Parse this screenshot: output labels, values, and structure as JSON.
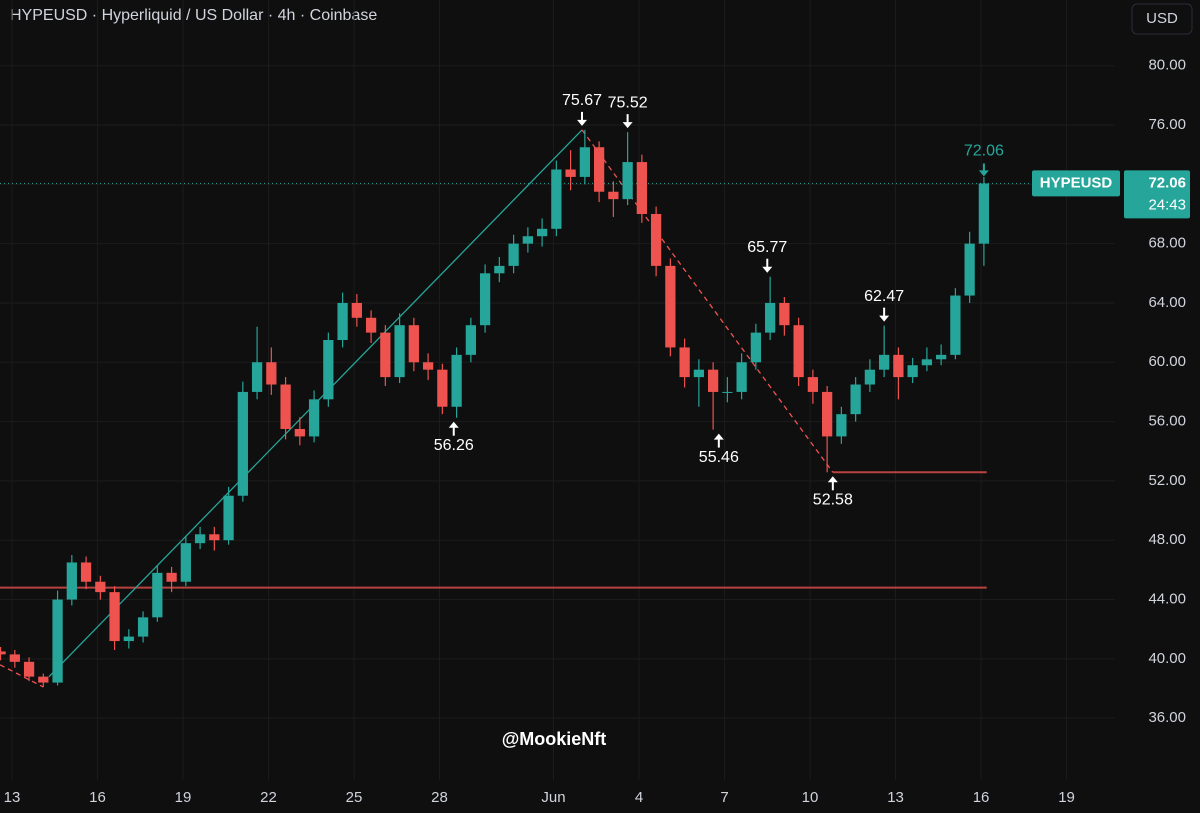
{
  "chart_data": {
    "type": "candlestick",
    "title": "HYPEUSD · Hyperliquid / US Dollar · 4h · Coinbase",
    "currency": "USD",
    "symbol": "HYPEUSD",
    "countdown": "24:43",
    "watermark": "@MookieNft",
    "up_color": "#26a69a",
    "down_color": "#ef5350",
    "grid": true,
    "x": [
      -0.4,
      0.1,
      0.6,
      1.1,
      1.6,
      2.1,
      2.6,
      3.1,
      3.6,
      4.1,
      4.6,
      5.1,
      5.6,
      6.1,
      6.6,
      7.1,
      7.6,
      8.1,
      8.6,
      9.1,
      9.6,
      10.1,
      10.6,
      11.1,
      11.6,
      12.1,
      12.6,
      13.1,
      13.6,
      14.1,
      14.6,
      15.1,
      15.6,
      16.1,
      16.6,
      17.1,
      17.6,
      18.1,
      18.6,
      19.1,
      19.6,
      20.1,
      20.6,
      21.1,
      21.6,
      22.1,
      22.6,
      23.1,
      23.6,
      24.1,
      24.6,
      25.1,
      25.6,
      26.1,
      26.6,
      27.1,
      27.6,
      28.1,
      28.6,
      29.1,
      29.6,
      30.1,
      30.6,
      31.1,
      31.6,
      32.1,
      32.6,
      33.1,
      33.6,
      34.1
    ],
    "open": [
      40.5,
      40.3,
      39.8,
      38.8,
      38.4,
      44,
      46.5,
      45.2,
      44.5,
      41.2,
      41.5,
      42.8,
      45.8,
      45.2,
      47.8,
      48.4,
      48,
      51,
      58,
      60,
      58.5,
      55.5,
      55,
      57.5,
      61.5,
      64,
      63,
      62,
      59,
      62.5,
      60,
      59.5,
      57,
      60.5,
      62.5,
      66,
      66.5,
      68,
      68.5,
      69,
      73,
      72.5,
      74.5,
      71.5,
      71,
      73.5,
      70,
      66.5,
      61,
      59,
      59.5,
      58,
      58,
      60,
      62,
      64,
      62.5,
      59,
      58,
      55,
      56.5,
      58.5,
      59.5,
      60.5,
      59,
      59.8,
      60.2,
      60.5,
      64.5,
      68
    ],
    "high": [
      40.8,
      40.6,
      40.1,
      39.0,
      44.6,
      47.0,
      46.9,
      45.6,
      44.9,
      42.0,
      43.2,
      46.3,
      46.2,
      48.3,
      48.9,
      48.9,
      51.6,
      58.7,
      62.4,
      61.0,
      59.0,
      56.3,
      58.1,
      62.0,
      64.7,
      64.6,
      63.5,
      62.5,
      63.3,
      63.0,
      60.6,
      59.9,
      61.0,
      63.0,
      66.6,
      67.1,
      68.6,
      69.1,
      69.7,
      73.6,
      74.3,
      75.67,
      74.9,
      72.2,
      75.52,
      74.0,
      70.5,
      67.0,
      61.6,
      60.2,
      60.0,
      59.0,
      60.6,
      62.6,
      65.77,
      64.4,
      63.0,
      59.5,
      58.4,
      57.0,
      59.0,
      60.2,
      62.47,
      61.0,
      60.3,
      61.0,
      61.2,
      65.0,
      68.8,
      72.5
    ],
    "low": [
      39.9,
      39.4,
      38.5,
      38.1,
      38.2,
      43.6,
      44.7,
      44.0,
      40.6,
      40.7,
      41.1,
      42.5,
      44.5,
      44.9,
      47.4,
      47.3,
      47.7,
      50.6,
      57.5,
      57.8,
      54.8,
      54.4,
      54.6,
      57.0,
      61.0,
      62.4,
      61.3,
      58.4,
      58.6,
      59.4,
      58.8,
      56.5,
      56.26,
      60.0,
      62.0,
      65.4,
      66.0,
      67.4,
      67.8,
      68.5,
      71.6,
      72.0,
      70.8,
      69.8,
      70.6,
      69.4,
      65.8,
      60.4,
      58.3,
      57.0,
      55.46,
      57.3,
      57.5,
      59.5,
      61.5,
      61.8,
      58.4,
      57.2,
      52.58,
      54.5,
      56.0,
      58.0,
      59.0,
      57.5,
      58.6,
      59.4,
      59.8,
      60.2,
      64.0,
      66.5
    ],
    "close": [
      40.3,
      39.8,
      38.8,
      38.4,
      44,
      46.5,
      45.2,
      44.5,
      41.2,
      41.5,
      42.8,
      45.8,
      45.2,
      47.8,
      48.4,
      48,
      51,
      58,
      60,
      58.5,
      55.5,
      55,
      57.5,
      61.5,
      64,
      63,
      62,
      59,
      62.5,
      60,
      59.5,
      57,
      60.5,
      62.5,
      66,
      66.5,
      68,
      68.5,
      69,
      73,
      72.5,
      74.5,
      71.5,
      71,
      73.5,
      70,
      66.5,
      61,
      59,
      59.5,
      58,
      58,
      60,
      62,
      64,
      62.5,
      59,
      58,
      55,
      56.5,
      58.5,
      59.5,
      60.5,
      59,
      59.8,
      60.2,
      60.5,
      64.5,
      68,
      72.06
    ],
    "highs": [
      {
        "x": 20.0,
        "value": 75.67
      },
      {
        "x": 21.6,
        "value": 75.52
      },
      {
        "x": 26.5,
        "value": 65.77
      },
      {
        "x": 30.6,
        "value": 62.47
      }
    ],
    "lows": [
      {
        "x": 15.5,
        "value": 56.26
      },
      {
        "x": 24.8,
        "value": 55.46
      },
      {
        "x": 28.8,
        "value": 52.58
      }
    ],
    "levels": [
      {
        "value": 44.8,
        "x": [
          -0.42,
          34.2
        ]
      },
      {
        "value": 52.58,
        "x": [
          28.8,
          34.2
        ]
      }
    ],
    "trend_lines": [
      {
        "x": [
          1.3,
          20.0
        ],
        "y": [
          38.8,
          75.67
        ],
        "color": "#26a69a",
        "dashed": false
      },
      {
        "x": [
          20.0,
          28.8
        ],
        "y": [
          75.67,
          52.58
        ],
        "color": "#ef5350",
        "dashed": true
      },
      {
        "x": [
          -0.42,
          1.1
        ],
        "y": [
          39.6,
          38.1
        ],
        "color": "#ef5350",
        "dashed": true
      }
    ],
    "xlim": [
      -0.42,
      38.7
    ],
    "ylim": [
      31.83,
      84.43
    ],
    "xticks": [
      {
        "value": 0,
        "label": "13"
      },
      {
        "value": 3,
        "label": "16"
      },
      {
        "value": 6,
        "label": "19"
      },
      {
        "value": 9,
        "label": "22"
      },
      {
        "value": 12,
        "label": "25"
      },
      {
        "value": 15,
        "label": "28"
      },
      {
        "value": 19,
        "label": "Jun"
      },
      {
        "value": 22,
        "label": "4"
      },
      {
        "value": 25,
        "label": "7"
      },
      {
        "value": 28,
        "label": "10"
      },
      {
        "value": 31,
        "label": "13"
      },
      {
        "value": 34,
        "label": "16"
      },
      {
        "value": 37,
        "label": "19"
      }
    ],
    "yticks": [
      {
        "value": 36,
        "label": "36.00"
      },
      {
        "value": 40,
        "label": "40.00"
      },
      {
        "value": 44,
        "label": "44.00"
      },
      {
        "value": 48,
        "label": "48.00"
      },
      {
        "value": 52,
        "label": "52.00"
      },
      {
        "value": 56,
        "label": "56.00"
      },
      {
        "value": 60,
        "label": "60.00"
      },
      {
        "value": 64,
        "label": "64.00"
      },
      {
        "value": 68,
        "label": "68.00"
      },
      {
        "value": 72,
        "label": "72.00"
      },
      {
        "value": 76,
        "label": "76.00"
      },
      {
        "value": 80,
        "label": "80.00"
      }
    ]
  }
}
